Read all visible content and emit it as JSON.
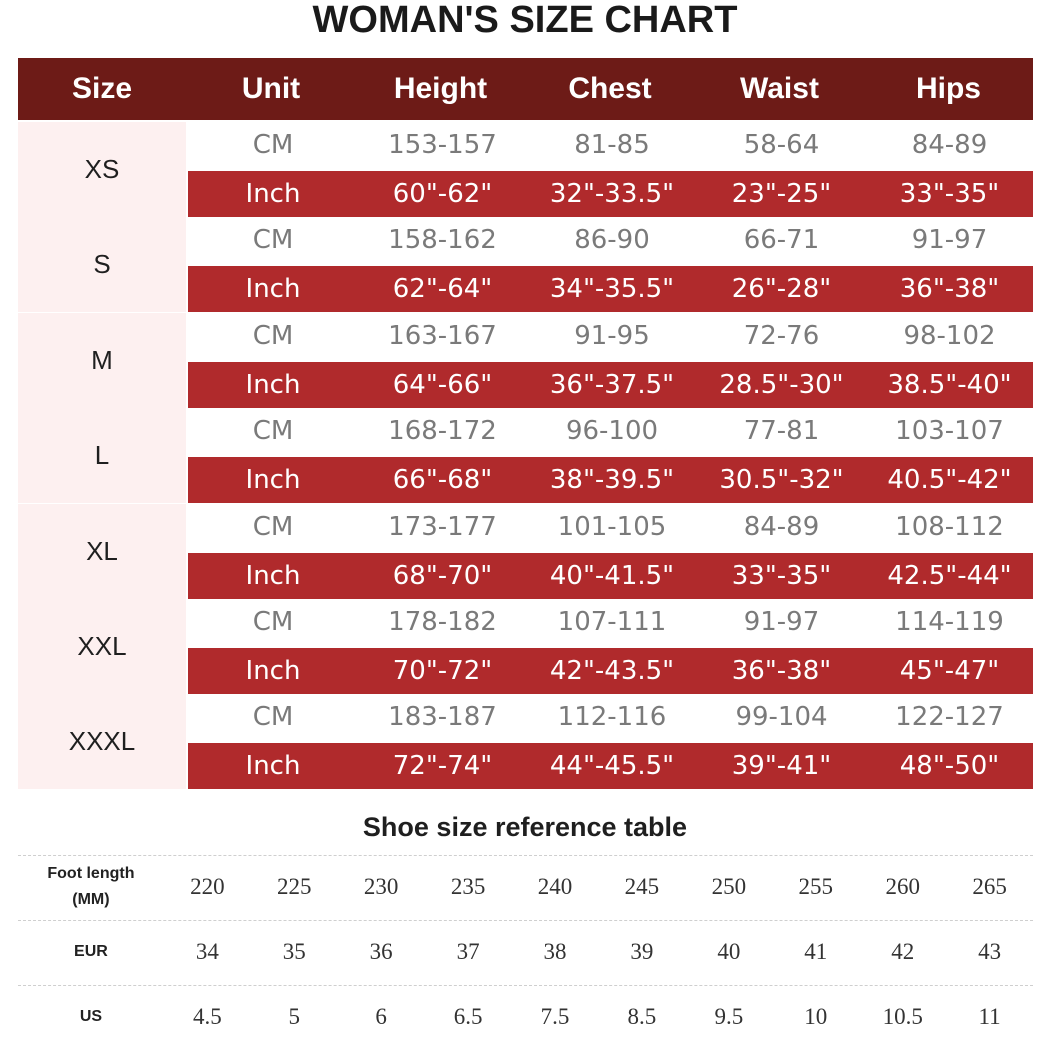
{
  "title": "WOMAN'S SIZE CHART",
  "colors": {
    "header_bg": "#6d1b17",
    "inch_row_bg": "#b02a2c",
    "size_cell_bg": "#fdf0f0"
  },
  "headers": [
    "Size",
    "Unit",
    "Height",
    "Chest",
    "Waist",
    "Hips"
  ],
  "sizes": [
    {
      "size": "XS",
      "cm": [
        "CM",
        "153-157",
        "81-85",
        "58-64",
        "84-89"
      ],
      "inch": [
        "Inch",
        "60\"-62\"",
        "32\"-33.5\"",
        "23\"-25\"",
        "33\"-35\""
      ]
    },
    {
      "size": "S",
      "cm": [
        "CM",
        "158-162",
        "86-90",
        "66-71",
        "91-97"
      ],
      "inch": [
        "Inch",
        "62\"-64\"",
        "34\"-35.5\"",
        "26\"-28\"",
        "36\"-38\""
      ]
    },
    {
      "size": "M",
      "cm": [
        "CM",
        "163-167",
        "91-95",
        "72-76",
        "98-102"
      ],
      "inch": [
        "Inch",
        "64\"-66\"",
        "36\"-37.5\"",
        "28.5\"-30\"",
        "38.5\"-40\""
      ]
    },
    {
      "size": "L",
      "cm": [
        "CM",
        "168-172",
        "96-100",
        "77-81",
        "103-107"
      ],
      "inch": [
        "Inch",
        "66\"-68\"",
        "38\"-39.5\"",
        "30.5\"-32\"",
        "40.5\"-42\""
      ]
    },
    {
      "size": "XL",
      "cm": [
        "CM",
        "173-177",
        "101-105",
        "84-89",
        "108-112"
      ],
      "inch": [
        "Inch",
        "68\"-70\"",
        "40\"-41.5\"",
        "33\"-35\"",
        "42.5\"-44\""
      ]
    },
    {
      "size": "XXL",
      "cm": [
        "CM",
        "178-182",
        "107-111",
        "91-97",
        "114-119"
      ],
      "inch": [
        "Inch",
        "70\"-72\"",
        "42\"-43.5\"",
        "36\"-38\"",
        "45\"-47\""
      ]
    },
    {
      "size": "XXXL",
      "cm": [
        "CM",
        "183-187",
        "112-116",
        "99-104",
        "122-127"
      ],
      "inch": [
        "Inch",
        "72\"-74\"",
        "44\"-45.5\"",
        "39\"-41\"",
        "48\"-50\""
      ]
    }
  ],
  "shoe": {
    "title": "Shoe size reference table",
    "rows": [
      {
        "label": [
          "Foot length",
          "(MM)"
        ],
        "values": [
          "220",
          "225",
          "230",
          "235",
          "240",
          "245",
          "250",
          "255",
          "260",
          "265"
        ]
      },
      {
        "label": [
          "EUR"
        ],
        "values": [
          "34",
          "35",
          "36",
          "37",
          "38",
          "39",
          "40",
          "41",
          "42",
          "43"
        ]
      },
      {
        "label": [
          "US"
        ],
        "values": [
          "4.5",
          "5",
          "6",
          "6.5",
          "7.5",
          "8.5",
          "9.5",
          "10",
          "10.5",
          "11"
        ]
      }
    ]
  }
}
